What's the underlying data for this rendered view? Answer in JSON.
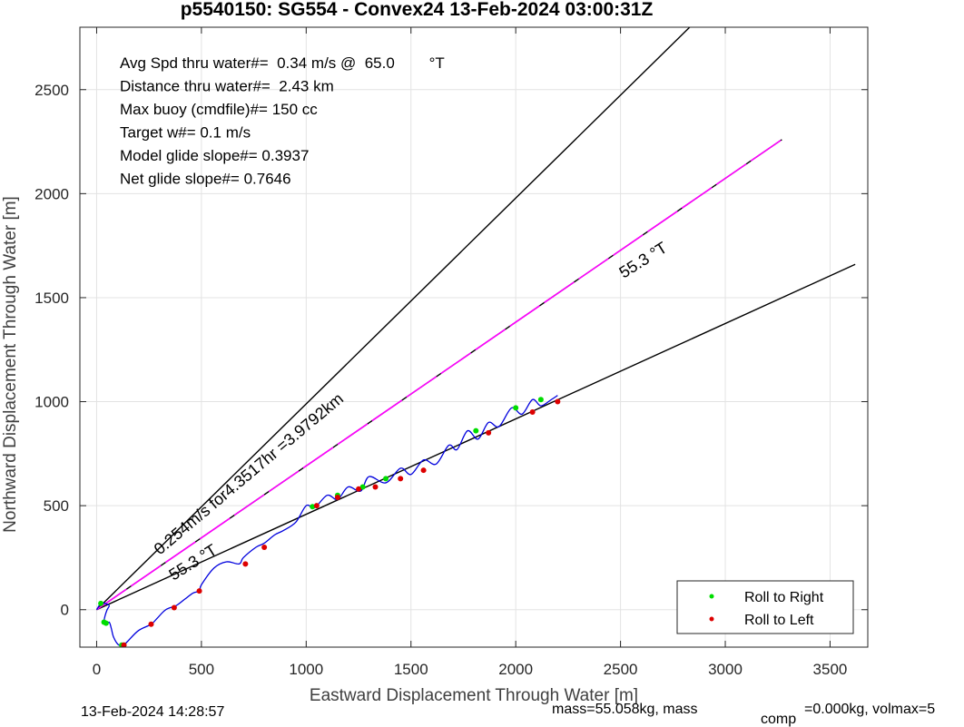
{
  "chart_data": {
    "type": "line",
    "title": "p5540150: SG554 - Convex24 13-Feb-2024 03:00:31Z",
    "xlabel": "Eastward Displacement Through Water [m]",
    "ylabel": "Northward Displacement Through Water [m]",
    "xlim": [
      -80,
      3680
    ],
    "ylim": [
      -180,
      2800
    ],
    "xticks": [
      0,
      500,
      1000,
      1500,
      2000,
      2500,
      3000,
      3500
    ],
    "yticks": [
      0,
      500,
      1000,
      1500,
      2000,
      2500
    ],
    "grid": true,
    "legend_position": "bottom-right",
    "legend": [
      {
        "label": "Roll to Right",
        "color": "#00dd00"
      },
      {
        "label": "Roll to Left",
        "color": "#dd0000"
      }
    ],
    "stats": [
      "Avg Spd thru water#=  0.34 m/s @  65.0        °T",
      "Distance thru water#=  2.43 km",
      "Max buoy (cmdfile)#= 150 cc",
      "Target w#= 0.1 m/s",
      "Model glide slope#= 0.3937",
      "Net glide slope#= 0.7646"
    ],
    "line_labels": {
      "upper": "0.254m/s for4.3517hr =3.9792km",
      "lower": "55.3 °T",
      "magenta": "55.3 °T"
    },
    "footer": {
      "date": "13-Feb-2024 14:28:57",
      "mass": "mass=55.058kg, mass",
      "mass_sub": "comp",
      "mass_tail": "=0.000kg, volmax=5"
    },
    "lines": [
      {
        "name": "",
        "color": "#000000",
        "x": [
          0,
          2830
        ],
        "y": [
          0,
          2800
        ]
      },
      {
        "name": "",
        "color": "#000000",
        "x": [
          0,
          3620
        ],
        "y": [
          0,
          1660
        ]
      },
      {
        "name": "",
        "color": "#000000",
        "x": [
          0,
          3270
        ],
        "y": [
          0,
          2260
        ]
      },
      {
        "name": "",
        "color": "#ff00ff",
        "x": [
          0,
          3270
        ],
        "y": [
          0,
          2260
        ]
      }
    ],
    "track": {
      "color": "#0000dd",
      "x": [
        0,
        20,
        40,
        60,
        50,
        40,
        35,
        45,
        60,
        70,
        80,
        100,
        120,
        130,
        150,
        200,
        260,
        290,
        330,
        380,
        420,
        460,
        490,
        500,
        560,
        620,
        680,
        700,
        760,
        800,
        850,
        890,
        950,
        1000,
        1040,
        1100,
        1150,
        1200,
        1260,
        1300,
        1380,
        1450,
        1500,
        1560,
        1620,
        1680,
        1720,
        1770,
        1820,
        1870,
        1920,
        1980,
        2030,
        2080,
        2120,
        2170,
        2200
      ],
      "y": [
        0,
        30,
        30,
        20,
        0,
        -30,
        -60,
        -70,
        -60,
        -90,
        -130,
        -165,
        -175,
        -170,
        -150,
        -100,
        -70,
        -40,
        0,
        20,
        50,
        80,
        90,
        120,
        200,
        230,
        220,
        250,
        300,
        320,
        360,
        380,
        420,
        500,
        490,
        550,
        530,
        590,
        570,
        640,
        610,
        680,
        650,
        720,
        700,
        790,
        770,
        860,
        820,
        900,
        880,
        970,
        940,
        1010,
        980,
        1010,
        1030
      ]
    },
    "roll_right": {
      "x": [
        20,
        35,
        45,
        120,
        130,
        1030,
        1150,
        1270,
        1380,
        1810,
        2000,
        2120
      ],
      "y": [
        30,
        -60,
        -65,
        -170,
        -170,
        495,
        550,
        590,
        630,
        860,
        970,
        1010
      ]
    },
    "roll_left": {
      "x": [
        130,
        260,
        370,
        490,
        710,
        800,
        1050,
        1150,
        1250,
        1330,
        1450,
        1560,
        1870,
        2080,
        2200
      ],
      "y": [
        -170,
        -70,
        10,
        90,
        220,
        300,
        500,
        540,
        580,
        590,
        630,
        670,
        850,
        950,
        1000
      ]
    }
  }
}
